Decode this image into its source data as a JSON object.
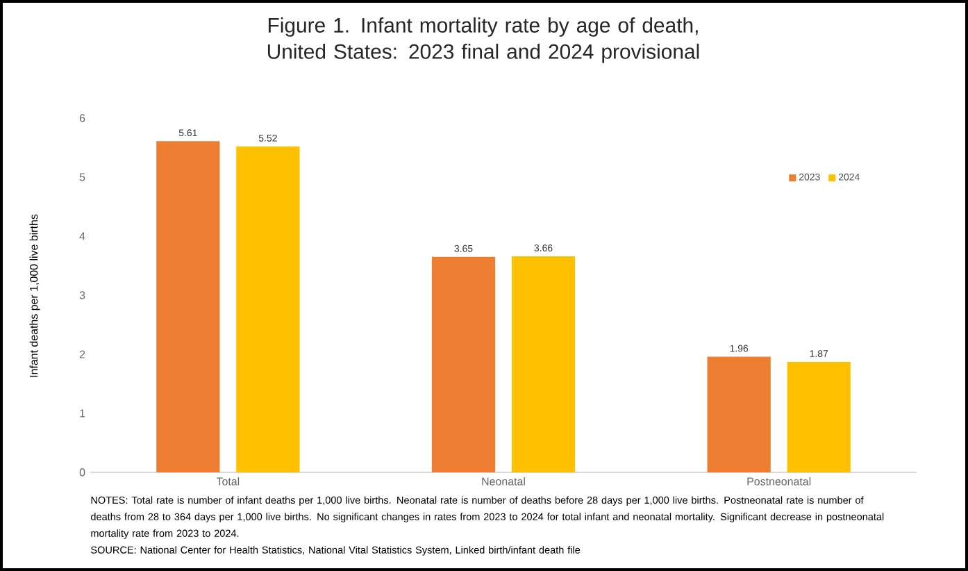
{
  "chart_data": {
    "type": "bar",
    "title": "Figure 1. Infant mortality rate by age of death, United States: 2023 final and 2024 provisional",
    "ylabel": "Infant deaths per 1,000 live births",
    "categories": [
      "Total",
      "Neonatal",
      "Postneonatal"
    ],
    "series": [
      {
        "name": "2023",
        "color": "#ed7d31",
        "values": [
          5.61,
          3.65,
          1.96
        ]
      },
      {
        "name": "2024",
        "color": "#ffc000",
        "values": [
          5.52,
          3.66,
          1.87
        ]
      }
    ],
    "ylim": [
      0,
      6
    ],
    "yticks": [
      0,
      1,
      2,
      3,
      4,
      5,
      6
    ],
    "data_labels": true,
    "legend": "top right",
    "annotations": [
      "NOTES: Total rate is number of infant deaths per 1,000 live births. Neonatal rate is number of deaths before 28 days per 1,000 live births. Postneonatal rate is number of deaths from 28 to 364 days per 1,000 live births. No significant changes in rates from 2023 to 2024 for total infant and neonatal mortality. Significant decrease in postneonatal mortality rate from 2023 to 2024.",
      "SOURCE: National Center for Health Statistics, National Vital Statistics System, Linked birth/infant death file"
    ]
  }
}
